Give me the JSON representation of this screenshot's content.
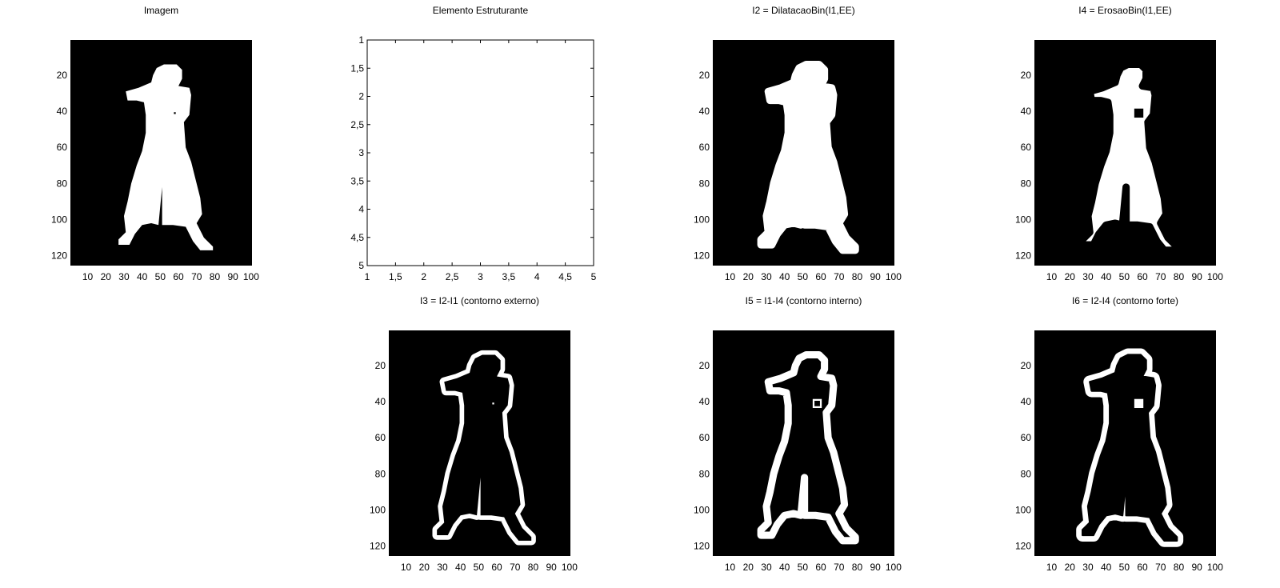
{
  "chart_data": [
    {
      "type": "image",
      "title": "Imagem",
      "x_ticks": [
        "10",
        "20",
        "30",
        "40",
        "50",
        "60",
        "70",
        "80",
        "90",
        "100"
      ],
      "y_ticks": [
        "20",
        "40",
        "60",
        "80",
        "100",
        "120"
      ],
      "xlim": [
        0.5,
        100.5
      ],
      "ylim": [
        0.5,
        125.5
      ],
      "background": "#000000",
      "foreground": "#ffffff",
      "shape": "filled",
      "hole": "dot"
    },
    {
      "type": "image",
      "title": "Elemento Estruturante",
      "x_ticks": [
        "1",
        "1,5",
        "2",
        "2,5",
        "3",
        "3,5",
        "4",
        "4,5",
        "5"
      ],
      "y_ticks": [
        "1",
        "1,5",
        "2",
        "2,5",
        "3",
        "3,5",
        "4",
        "4,5",
        "5"
      ],
      "xlim": [
        1,
        5
      ],
      "ylim": [
        1,
        5
      ],
      "background": "#ffffff",
      "shape": "blank"
    },
    {
      "type": "image",
      "title": "I2 = DilatacaoBin(I1,EE)",
      "x_ticks": [
        "10",
        "20",
        "30",
        "40",
        "50",
        "60",
        "70",
        "80",
        "90",
        "100"
      ],
      "y_ticks": [
        "20",
        "40",
        "60",
        "80",
        "100",
        "120"
      ],
      "xlim": [
        0.5,
        100.5
      ],
      "ylim": [
        0.5,
        125.5
      ],
      "background": "#000000",
      "foreground": "#ffffff",
      "shape": "filled-dilated"
    },
    {
      "type": "image",
      "title": "I4 = ErosaoBin(I1,EE)",
      "x_ticks": [
        "10",
        "20",
        "30",
        "40",
        "50",
        "60",
        "70",
        "80",
        "90",
        "100"
      ],
      "y_ticks": [
        "20",
        "40",
        "60",
        "80",
        "100",
        "120"
      ],
      "xlim": [
        0.5,
        100.5
      ],
      "ylim": [
        0.5,
        125.5
      ],
      "background": "#000000",
      "foreground": "#ffffff",
      "shape": "filled-eroded",
      "hole": "square"
    },
    {
      "type": "image",
      "title": "I3 = I2-I1 (contorno externo)",
      "x_ticks": [
        "10",
        "20",
        "30",
        "40",
        "50",
        "60",
        "70",
        "80",
        "90",
        "100"
      ],
      "y_ticks": [
        "20",
        "40",
        "60",
        "80",
        "100",
        "120"
      ],
      "xlim": [
        0.5,
        100.5
      ],
      "ylim": [
        0.5,
        125.5
      ],
      "background": "#000000",
      "foreground": "#ffffff",
      "shape": "contour-external"
    },
    {
      "type": "image",
      "title": "I5 = I1-I4 (contorno interno)",
      "x_ticks": [
        "10",
        "20",
        "30",
        "40",
        "50",
        "60",
        "70",
        "80",
        "90",
        "100"
      ],
      "y_ticks": [
        "20",
        "40",
        "60",
        "80",
        "100",
        "120"
      ],
      "xlim": [
        0.5,
        100.5
      ],
      "ylim": [
        0.5,
        125.5
      ],
      "background": "#000000",
      "foreground": "#ffffff",
      "shape": "contour-internal"
    },
    {
      "type": "image",
      "title": "I6 = I2-I4 (contorno forte)",
      "x_ticks": [
        "10",
        "20",
        "30",
        "40",
        "50",
        "60",
        "70",
        "80",
        "90",
        "100"
      ],
      "y_ticks": [
        "20",
        "40",
        "60",
        "80",
        "100",
        "120"
      ],
      "xlim": [
        0.5,
        100.5
      ],
      "ylim": [
        0.5,
        125.5
      ],
      "background": "#000000",
      "foreground": "#ffffff",
      "shape": "contour-strong"
    }
  ]
}
